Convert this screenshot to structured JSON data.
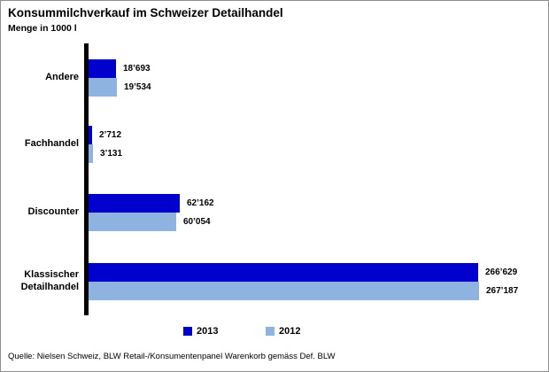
{
  "chart_data": {
    "type": "bar",
    "orientation": "horizontal",
    "title": "Konsummilchverkauf im Schweizer Detailhandel",
    "subtitle": "Menge in 1000 l",
    "categories": [
      "Andere",
      "Fachhandel",
      "Discounter",
      "Klassischer Detailhandel"
    ],
    "series": [
      {
        "name": "2013",
        "color": "#0101cd",
        "values": [
          18693,
          2712,
          62162,
          266629
        ],
        "labels": [
          "18’693",
          "2’712",
          "62’162",
          "266’629"
        ]
      },
      {
        "name": "2012",
        "color": "#8fb3e1",
        "values": [
          19534,
          3131,
          60054,
          267187
        ],
        "labels": [
          "19’534",
          "3’131",
          "60’054",
          "267’187"
        ]
      }
    ],
    "xlim": [
      0,
      270000
    ],
    "grid": false,
    "legend_position": "bottom",
    "axis_color": "#000000"
  },
  "source": "Quelle: Nielsen Schweiz, BLW Retail-/Konsumentenpanel Warenkorb gemäss Def. BLW"
}
